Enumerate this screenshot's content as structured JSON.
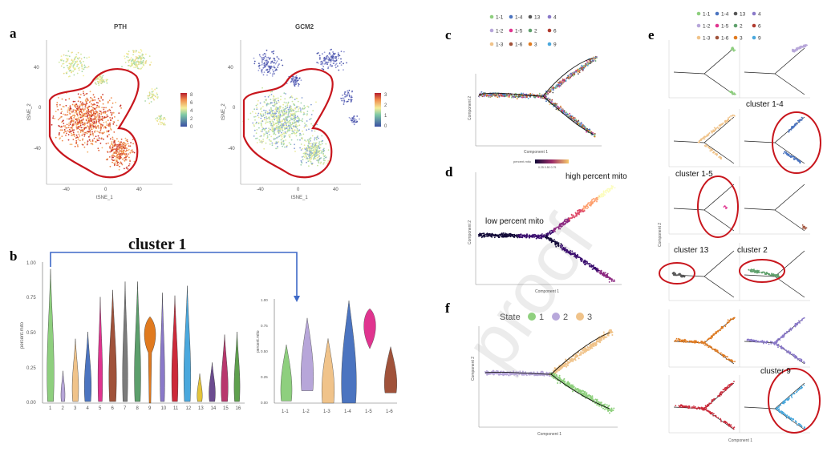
{
  "panels": {
    "a": "a",
    "b": "b",
    "c": "c",
    "d": "d",
    "e": "e",
    "f": "f"
  },
  "panel_a": {
    "pth_title": "PTH",
    "gcm2_title": "GCM2",
    "xlabel": "tSNE_1",
    "ylabel": "tSNE_2",
    "yticks": [
      "40",
      "0",
      "-40"
    ],
    "xticks": [
      "-40",
      "0",
      "40"
    ],
    "pth_legend": [
      "8",
      "6",
      "4",
      "2",
      "0"
    ],
    "gcm2_legend": [
      "3",
      "2",
      "1",
      "0"
    ]
  },
  "panel_b": {
    "title": "cluster 1",
    "ylabel": "percent.mito",
    "yticks": [
      "1.00",
      "0.75",
      "0.50",
      "0.25",
      "0.00"
    ],
    "sub_yticks": [
      "1.00",
      "0.75",
      "0.50",
      "0.25",
      "0.00"
    ]
  },
  "panel_c": {
    "xlabel": "Component 1",
    "ylabel": "Component 2"
  },
  "panel_d": {
    "legend_title": "percent.mito",
    "legend_ticks": "0.25 0.50 0.75",
    "high_label": "high percent mito",
    "low_label": "low percent mito",
    "xlabel": "Component 1",
    "ylabel": "Component 2"
  },
  "panel_e": {
    "labels": [
      "cluster 1-4",
      "cluster 1-5",
      "cluster 13",
      "cluster 2",
      "cluster 9"
    ],
    "xlabel": "Component 1",
    "ylabel": "Component 2"
  },
  "panel_f": {
    "legend_title": "State",
    "states": [
      "1",
      "2",
      "3"
    ],
    "xlabel": "Component 1",
    "ylabel": "Component 2"
  },
  "watermark": "proof",
  "chart_data": [
    {
      "type": "violin",
      "title": "",
      "ylabel": "percent.mito",
      "ylim": [
        0,
        1
      ],
      "categories": [
        "1",
        "2",
        "3",
        "4",
        "5",
        "6",
        "7",
        "8",
        "9",
        "10",
        "11",
        "12",
        "13",
        "14",
        "15",
        "16"
      ],
      "values": [
        0.13,
        0.02,
        0.12,
        0.14,
        0.04,
        0.15,
        0.04,
        0.06,
        0.46,
        0.04,
        0.1,
        0.1,
        0.05,
        0.04,
        0.1,
        0.08
      ],
      "colors": [
        "#8ecf7e",
        "#b7a6d9",
        "#f0c38a",
        "#4b74c0",
        "#e0348f",
        "#a0523a",
        "#7c7c7c",
        "#5c9f6c",
        "#e07a1f",
        "#8a79c9",
        "#cc2a3a",
        "#4aa8dd",
        "#e3c43a",
        "#6b4b8f",
        "#b8386d",
        "#5fa04e"
      ]
    },
    {
      "type": "violin",
      "ylabel": "percent.mito",
      "ylim": [
        0,
        1
      ],
      "categories": [
        "1-1",
        "1-2",
        "1-3",
        "1-4",
        "1-5",
        "1-6"
      ],
      "values": [
        0.18,
        0.45,
        0.2,
        0.55,
        0.65,
        0.2
      ],
      "colors": [
        "#8ecf7e",
        "#b7a6d9",
        "#f0c38a",
        "#4b74c0",
        "#e0348f",
        "#a0523a"
      ]
    }
  ],
  "cluster_legend": [
    {
      "label": "1-1",
      "color": "#8ecf7e"
    },
    {
      "label": "1-4",
      "color": "#4b74c0"
    },
    {
      "label": "13",
      "color": "#555"
    },
    {
      "label": "4",
      "color": "#8a79c9"
    },
    {
      "label": "1-2",
      "color": "#b7a6d9"
    },
    {
      "label": "1-5",
      "color": "#e0348f"
    },
    {
      "label": "2",
      "color": "#5fa06c"
    },
    {
      "label": "6",
      "color": "#b03a2e"
    },
    {
      "label": "1-3",
      "color": "#f0c38a"
    },
    {
      "label": "1-6",
      "color": "#a0523a"
    },
    {
      "label": "3",
      "color": "#e07a1f"
    },
    {
      "label": "9",
      "color": "#4aa8dd"
    }
  ]
}
